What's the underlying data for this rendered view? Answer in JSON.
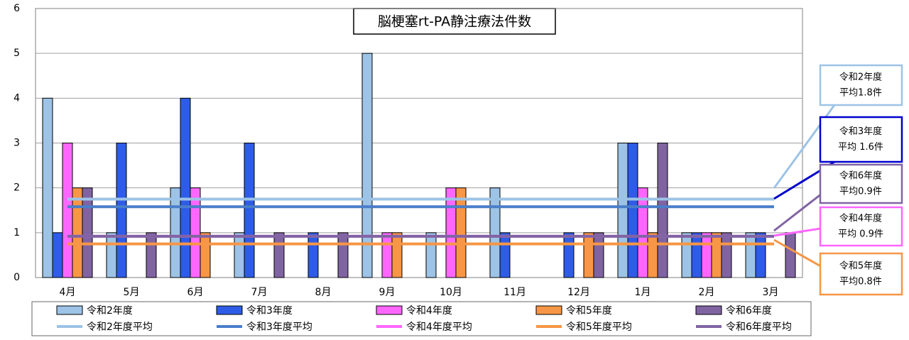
{
  "chart_data": {
    "type": "bar",
    "title": "脳梗塞rt-PA静注療法件数",
    "categories": [
      "4月",
      "5月",
      "6月",
      "7月",
      "8月",
      "9月",
      "10月",
      "11月",
      "12月",
      "1月",
      "2月",
      "3月"
    ],
    "series": [
      {
        "name": "令和2年度",
        "color": "#9dc3e6",
        "values": [
          4,
          1,
          2,
          1,
          0,
          5,
          1,
          2,
          0,
          3,
          1,
          1
        ]
      },
      {
        "name": "令和3年度",
        "color": "#2e5ce6",
        "values": [
          1,
          3,
          4,
          3,
          1,
          0,
          0,
          1,
          1,
          3,
          1,
          1
        ]
      },
      {
        "name": "令和4年度",
        "color": "#ff66ff",
        "values": [
          3,
          0,
          2,
          0,
          0,
          1,
          2,
          0,
          0,
          2,
          1,
          0
        ]
      },
      {
        "name": "令和5年度",
        "color": "#f79646",
        "values": [
          2,
          0,
          1,
          0,
          0,
          1,
          2,
          0,
          1,
          1,
          1,
          0
        ]
      },
      {
        "name": "令和6年度",
        "color": "#8064a2",
        "values": [
          2,
          1,
          0,
          1,
          1,
          0,
          0,
          0,
          1,
          3,
          1,
          1
        ]
      }
    ],
    "average_lines": [
      {
        "name": "令和2年度平均",
        "color": "#9dc3e6",
        "value": 1.75
      },
      {
        "name": "令和3年度平均",
        "color": "#4a7ec9",
        "value": 1.58
      },
      {
        "name": "令和4年度平均",
        "color": "#ff66ff",
        "value": 0.92
      },
      {
        "name": "令和5年度平均",
        "color": "#f79646",
        "value": 0.75
      },
      {
        "name": "令和6年度平均",
        "color": "#8064a2",
        "value": 0.92
      }
    ],
    "annotations": [
      {
        "lines": [
          "令和2年度",
          "平均1.8件"
        ],
        "color": "#9dc3e6"
      },
      {
        "lines": [
          "令和3年度",
          "平均 1.6件"
        ],
        "color": "#0000cc"
      },
      {
        "lines": [
          "令和6年度",
          "平均0.9件"
        ],
        "color": "#8064a2"
      },
      {
        "lines": [
          "令和4年度",
          "平均 0.9件"
        ],
        "color": "#ff66ff"
      },
      {
        "lines": [
          "令和5年度",
          "平均0.8件"
        ],
        "color": "#f79646"
      }
    ],
    "ylim": [
      0,
      6
    ],
    "yticks": [
      0,
      1,
      2,
      3,
      4,
      5,
      6
    ],
    "grid": true
  }
}
